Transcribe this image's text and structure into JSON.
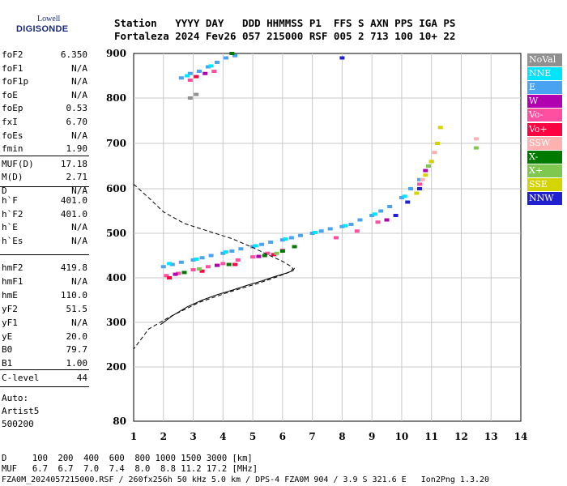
{
  "logo": {
    "line1": "Lowell",
    "line2": "DIGISONDE"
  },
  "header": {
    "line1": "Station   YYYY DAY   DDD HHMMSS P1  FFS S AXN PPS IGA PS",
    "line2": "Fortaleza 2024 Fev26 057 215000 RSF 005 2 713 100 10+ 22"
  },
  "params_group1": [
    {
      "k": "foF2",
      "v": "6.350"
    },
    {
      "k": "foF1",
      "v": "N/A"
    },
    {
      "k": "foF1p",
      "v": "N/A"
    },
    {
      "k": "foE",
      "v": "N/A"
    },
    {
      "k": "foEp",
      "v": "0.53"
    },
    {
      "k": "fxI",
      "v": "6.70"
    },
    {
      "k": "foEs",
      "v": "N/A"
    },
    {
      "k": "fmin",
      "v": "1.90"
    }
  ],
  "params_group2": [
    {
      "k": "MUF(D)",
      "v": "17.18"
    },
    {
      "k": "M(D)",
      "v": "2.71"
    },
    {
      "k": "D",
      "v": "N/A"
    }
  ],
  "params_group3": [
    {
      "k": "h`F",
      "v": "401.0"
    },
    {
      "k": "h`F2",
      "v": "401.0"
    },
    {
      "k": "h`E",
      "v": "N/A"
    },
    {
      "k": "h`Es",
      "v": "N/A"
    }
  ],
  "params_group4": [
    {
      "k": "hmF2",
      "v": "419.8"
    },
    {
      "k": "hmF1",
      "v": "N/A"
    },
    {
      "k": "hmE",
      "v": "110.0"
    },
    {
      "k": "yF2",
      "v": "51.5"
    },
    {
      "k": "yF1",
      "v": "N/A"
    },
    {
      "k": "yE",
      "v": "20.0"
    },
    {
      "k": "B0",
      "v": "79.7"
    },
    {
      "k": "B1",
      "v": "1.00"
    }
  ],
  "clevel": {
    "k": "C-level",
    "v": "44"
  },
  "auto": {
    "line1": "Auto:",
    "line2": "Artist5",
    "line3": "500200"
  },
  "legend": [
    {
      "label": "NoVal",
      "color": "#909090"
    },
    {
      "label": "NNE",
      "color": "#00e5ff"
    },
    {
      "label": "E",
      "color": "#4aa3f0"
    },
    {
      "label": "W",
      "color": "#b000b0"
    },
    {
      "label": "Vo-",
      "color": "#ff4fa0"
    },
    {
      "label": "Vo+",
      "color": "#ff0040"
    },
    {
      "label": "SSW",
      "color": "#ffb0b0"
    },
    {
      "label": "X-",
      "color": "#007a00"
    },
    {
      "label": "X+",
      "color": "#7ec850"
    },
    {
      "label": "SSE",
      "color": "#d4d400"
    },
    {
      "label": "NNW",
      "color": "#2020d0"
    }
  ],
  "bottom": {
    "line1": "D     100  200  400  600  800 1000 1500 3000 [km]",
    "line2": "MUF   6.7  6.7  7.0  7.4  8.0  8.8 11.2 17.2 [MHz]",
    "line3": "FZA0M_2024057215000.RSF / 260fx256h 50 kHz 5.0 km / DPS-4 FZA0M 904 / 3.9 S 321.6 E   Ion2Png 1.3.20"
  },
  "chart_data": {
    "type": "scatter",
    "title": "",
    "xlabel": "",
    "ylabel": "",
    "xlim": [
      1,
      14
    ],
    "ylim": [
      80,
      900
    ],
    "x_ticks": [
      1,
      2,
      3,
      4,
      5,
      6,
      7,
      8,
      9,
      10,
      11,
      12,
      13,
      14
    ],
    "y_ticks": [
      80,
      200,
      300,
      400,
      500,
      600,
      700,
      800,
      900
    ],
    "y_scale": "log-like",
    "grid": true,
    "legend_placement": "right",
    "series": [
      {
        "color": "#4aa3f0",
        "points": [
          [
            2.0,
            425
          ],
          [
            2.3,
            430
          ],
          [
            2.6,
            435
          ],
          [
            3.0,
            440
          ],
          [
            3.3,
            445
          ],
          [
            3.6,
            450
          ],
          [
            4.0,
            455
          ],
          [
            4.3,
            460
          ],
          [
            4.6,
            465
          ],
          [
            5.0,
            470
          ],
          [
            5.3,
            475
          ],
          [
            5.6,
            480
          ],
          [
            6.0,
            485
          ],
          [
            6.3,
            490
          ],
          [
            6.6,
            495
          ],
          [
            7.0,
            500
          ],
          [
            7.3,
            505
          ],
          [
            7.6,
            510
          ],
          [
            8.0,
            515
          ],
          [
            8.3,
            520
          ],
          [
            8.6,
            530
          ],
          [
            9.0,
            540
          ],
          [
            9.3,
            550
          ],
          [
            9.6,
            560
          ],
          [
            10.0,
            580
          ],
          [
            10.3,
            600
          ],
          [
            10.6,
            620
          ],
          [
            10.9,
            650
          ],
          [
            2.6,
            845
          ],
          [
            2.9,
            855
          ],
          [
            3.2,
            860
          ],
          [
            3.5,
            870
          ],
          [
            3.8,
            880
          ],
          [
            4.1,
            890
          ],
          [
            4.4,
            895
          ]
        ]
      },
      {
        "color": "#00e5ff",
        "points": [
          [
            2.2,
            432
          ],
          [
            3.1,
            442
          ],
          [
            4.1,
            458
          ],
          [
            5.1,
            472
          ],
          [
            6.1,
            487
          ],
          [
            7.1,
            502
          ],
          [
            8.1,
            517
          ],
          [
            9.1,
            543
          ],
          [
            10.1,
            583
          ],
          [
            2.8,
            850
          ],
          [
            3.6,
            872
          ]
        ]
      },
      {
        "color": "#ff4fa0",
        "points": [
          [
            2.1,
            405
          ],
          [
            2.5,
            410
          ],
          [
            3.0,
            418
          ],
          [
            3.5,
            425
          ],
          [
            4.0,
            432
          ],
          [
            4.5,
            440
          ],
          [
            5.0,
            447
          ],
          [
            5.5,
            455
          ],
          [
            6.0,
            462
          ],
          [
            7.8,
            490
          ],
          [
            8.5,
            505
          ],
          [
            9.2,
            525
          ],
          [
            10.6,
            610
          ],
          [
            11.0,
            660
          ],
          [
            2.9,
            840
          ],
          [
            3.7,
            860
          ]
        ]
      },
      {
        "color": "#ff0040",
        "points": [
          [
            2.2,
            400
          ],
          [
            3.3,
            415
          ],
          [
            4.4,
            430
          ],
          [
            5.7,
            452
          ],
          [
            3.1,
            848
          ]
        ]
      },
      {
        "color": "#b000b0",
        "points": [
          [
            2.4,
            408
          ],
          [
            3.8,
            428
          ],
          [
            5.2,
            448
          ],
          [
            9.5,
            530
          ],
          [
            10.8,
            640
          ],
          [
            3.4,
            855
          ]
        ]
      },
      {
        "color": "#007a00",
        "points": [
          [
            2.7,
            412
          ],
          [
            4.2,
            430
          ],
          [
            5.4,
            450
          ],
          [
            6.0,
            460
          ],
          [
            6.4,
            470
          ],
          [
            4.3,
            900
          ]
        ]
      },
      {
        "color": "#7ec850",
        "points": [
          [
            3.2,
            420
          ],
          [
            5.8,
            455
          ],
          [
            10.9,
            650
          ],
          [
            12.5,
            690
          ]
        ]
      },
      {
        "color": "#d4d400",
        "points": [
          [
            10.5,
            590
          ],
          [
            10.8,
            630
          ],
          [
            11.0,
            660
          ],
          [
            11.2,
            700
          ],
          [
            11.3,
            735
          ]
        ]
      },
      {
        "color": "#2020d0",
        "points": [
          [
            9.8,
            540
          ],
          [
            10.2,
            570
          ],
          [
            10.6,
            600
          ],
          [
            8.0,
            890
          ]
        ]
      },
      {
        "color": "#ffb0b0",
        "points": [
          [
            10.7,
            620
          ],
          [
            11.1,
            680
          ],
          [
            12.5,
            710
          ]
        ]
      },
      {
        "color": "#909090",
        "points": [
          [
            2.9,
            800
          ],
          [
            3.1,
            808
          ]
        ]
      }
    ],
    "profile_solid": [
      [
        1.9,
        295
      ],
      [
        2.3,
        315
      ],
      [
        2.8,
        335
      ],
      [
        3.3,
        350
      ],
      [
        3.8,
        362
      ],
      [
        4.3,
        372
      ],
      [
        4.8,
        383
      ],
      [
        5.3,
        393
      ],
      [
        5.7,
        402
      ],
      [
        6.1,
        410
      ],
      [
        6.35,
        416
      ],
      [
        6.4,
        422
      ]
    ],
    "profile_dashed": [
      [
        1.0,
        610
      ],
      [
        1.5,
        580
      ],
      [
        2.0,
        548
      ],
      [
        2.7,
        522
      ],
      [
        3.5,
        505
      ],
      [
        4.3,
        488
      ],
      [
        5.0,
        468
      ],
      [
        5.5,
        452
      ],
      [
        6.0,
        437
      ],
      [
        6.3,
        425
      ],
      [
        6.35,
        419.8
      ],
      [
        6.2,
        412
      ],
      [
        5.8,
        402
      ],
      [
        5.2,
        388
      ],
      [
        4.2,
        368
      ],
      [
        3.2,
        345
      ],
      [
        2.2,
        312
      ],
      [
        1.5,
        285
      ],
      [
        1.0,
        240
      ]
    ]
  }
}
